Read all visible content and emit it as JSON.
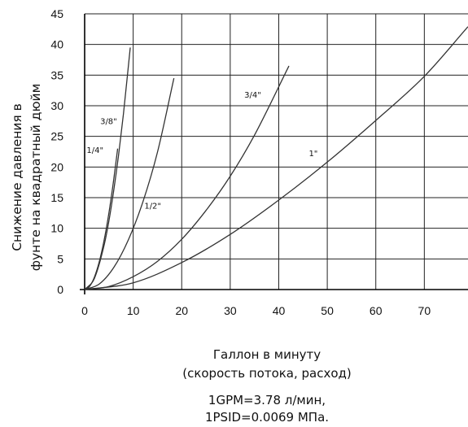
{
  "chart_data": {
    "type": "line",
    "xlabel_line1": "Галлон в минуту",
    "xlabel_line2": "(скорость потока, расход)",
    "ylabel_line1": "Снижение давления в",
    "ylabel_line2": "фунте на квадратный дюйм",
    "xlim": [
      0,
      79
    ],
    "ylim": [
      0,
      45
    ],
    "x_ticks": [
      0,
      10,
      20,
      30,
      40,
      50,
      60,
      70
    ],
    "y_ticks": [
      0,
      5,
      10,
      15,
      20,
      25,
      30,
      35,
      40,
      45
    ],
    "grid": true,
    "series": [
      {
        "name": "1/4\"",
        "x": [
          0,
          1,
          2,
          3,
          4,
          5,
          6,
          6.8
        ],
        "y": [
          0,
          0.5,
          2.0,
          4.5,
          8.0,
          12.5,
          18.0,
          23.0
        ]
      },
      {
        "name": "3/8\"",
        "x": [
          0,
          2,
          4,
          5,
          6,
          7,
          8,
          9.4
        ],
        "y": [
          0,
          1.8,
          7.2,
          11.2,
          16.2,
          22.0,
          28.7,
          39.5
        ]
      },
      {
        "name": "1/2\"",
        "x": [
          0,
          3,
          6,
          9,
          12,
          15,
          18.4
        ],
        "y": [
          0,
          0.9,
          3.6,
          8.1,
          14.3,
          22.4,
          34.5
        ]
      },
      {
        "name": "3/4\"",
        "x": [
          0,
          5,
          10,
          15,
          20,
          25,
          30,
          35,
          42.1
        ],
        "y": [
          0,
          0.5,
          2.1,
          4.6,
          8.2,
          12.9,
          18.5,
          25.2,
          36.5
        ]
      },
      {
        "name": "1\"",
        "x": [
          0,
          10,
          20,
          30,
          40,
          50,
          60,
          70,
          79
        ],
        "y": [
          0,
          1.1,
          4.4,
          9.0,
          14.6,
          20.8,
          27.6,
          34.8,
          42.9
        ]
      }
    ],
    "labels": [
      {
        "text": "1/4\"",
        "x": 0.4,
        "y": 22.3
      },
      {
        "text": "3/8\"",
        "x": 3.2,
        "y": 27.0
      },
      {
        "text": "1/2\"",
        "x": 12.3,
        "y": 13.2
      },
      {
        "text": "3/4\"",
        "x": 32.9,
        "y": 31.3
      },
      {
        "text": "1\"",
        "x": 46.2,
        "y": 21.8
      }
    ]
  },
  "notes": {
    "line1": "1GPM=3.78 л/мин,",
    "line2": "1PSID=0.0069 МПа."
  }
}
